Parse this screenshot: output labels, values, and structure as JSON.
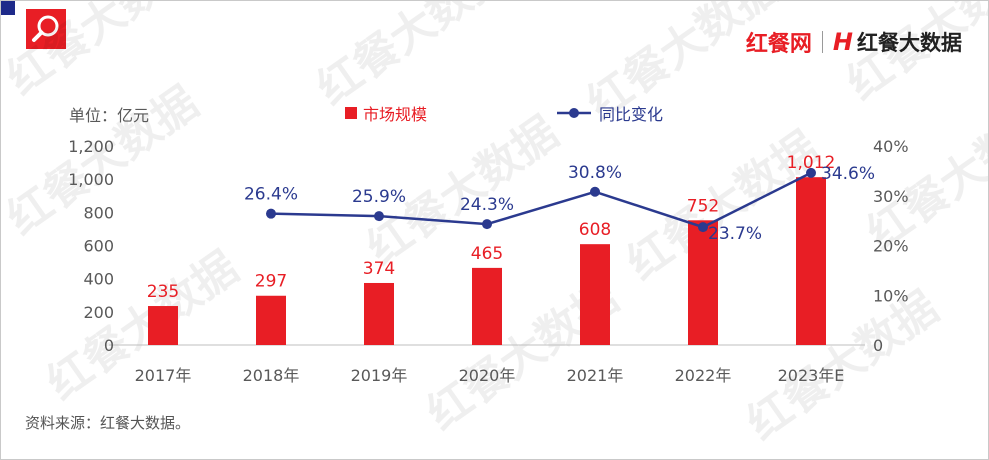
{
  "brand": {
    "logo_left": "红餐网",
    "logo_right_mark": "H",
    "logo_right": "红餐大数据",
    "accent": "#e81e25",
    "navy": "#1e2a8a"
  },
  "watermark_text": "红餐大数据",
  "source": "资料来源：红餐大数据。",
  "chart_data": {
    "type": "bar",
    "unit_label": "单位：亿元",
    "categories": [
      "2017年",
      "2018年",
      "2019年",
      "2020年",
      "2021年",
      "2022年",
      "2023年E"
    ],
    "series": [
      {
        "name": "市场规模",
        "type": "bar",
        "color": "#e81e25",
        "axis": "left",
        "values": [
          235,
          297,
          374,
          465,
          608,
          752,
          1012
        ],
        "labels": [
          "235",
          "297",
          "374",
          "465",
          "608",
          "752",
          "1,012"
        ]
      },
      {
        "name": "同比变化",
        "type": "line",
        "color": "#2b3a8f",
        "axis": "right",
        "values": [
          null,
          26.4,
          25.9,
          24.3,
          30.8,
          23.7,
          34.6
        ],
        "labels": [
          "",
          "26.4%",
          "25.9%",
          "24.3%",
          "30.8%",
          "23.7%",
          "34.6%"
        ]
      }
    ],
    "y_left": {
      "min": 0,
      "max": 1200,
      "ticks": [
        "0",
        "200",
        "400",
        "600",
        "800",
        "1,000",
        "1,200"
      ]
    },
    "y_right": {
      "min": 0,
      "max": 40,
      "ticks": [
        "0",
        "10%",
        "20%",
        "30%",
        "40%"
      ]
    },
    "legend_position": "top",
    "grid": false
  }
}
